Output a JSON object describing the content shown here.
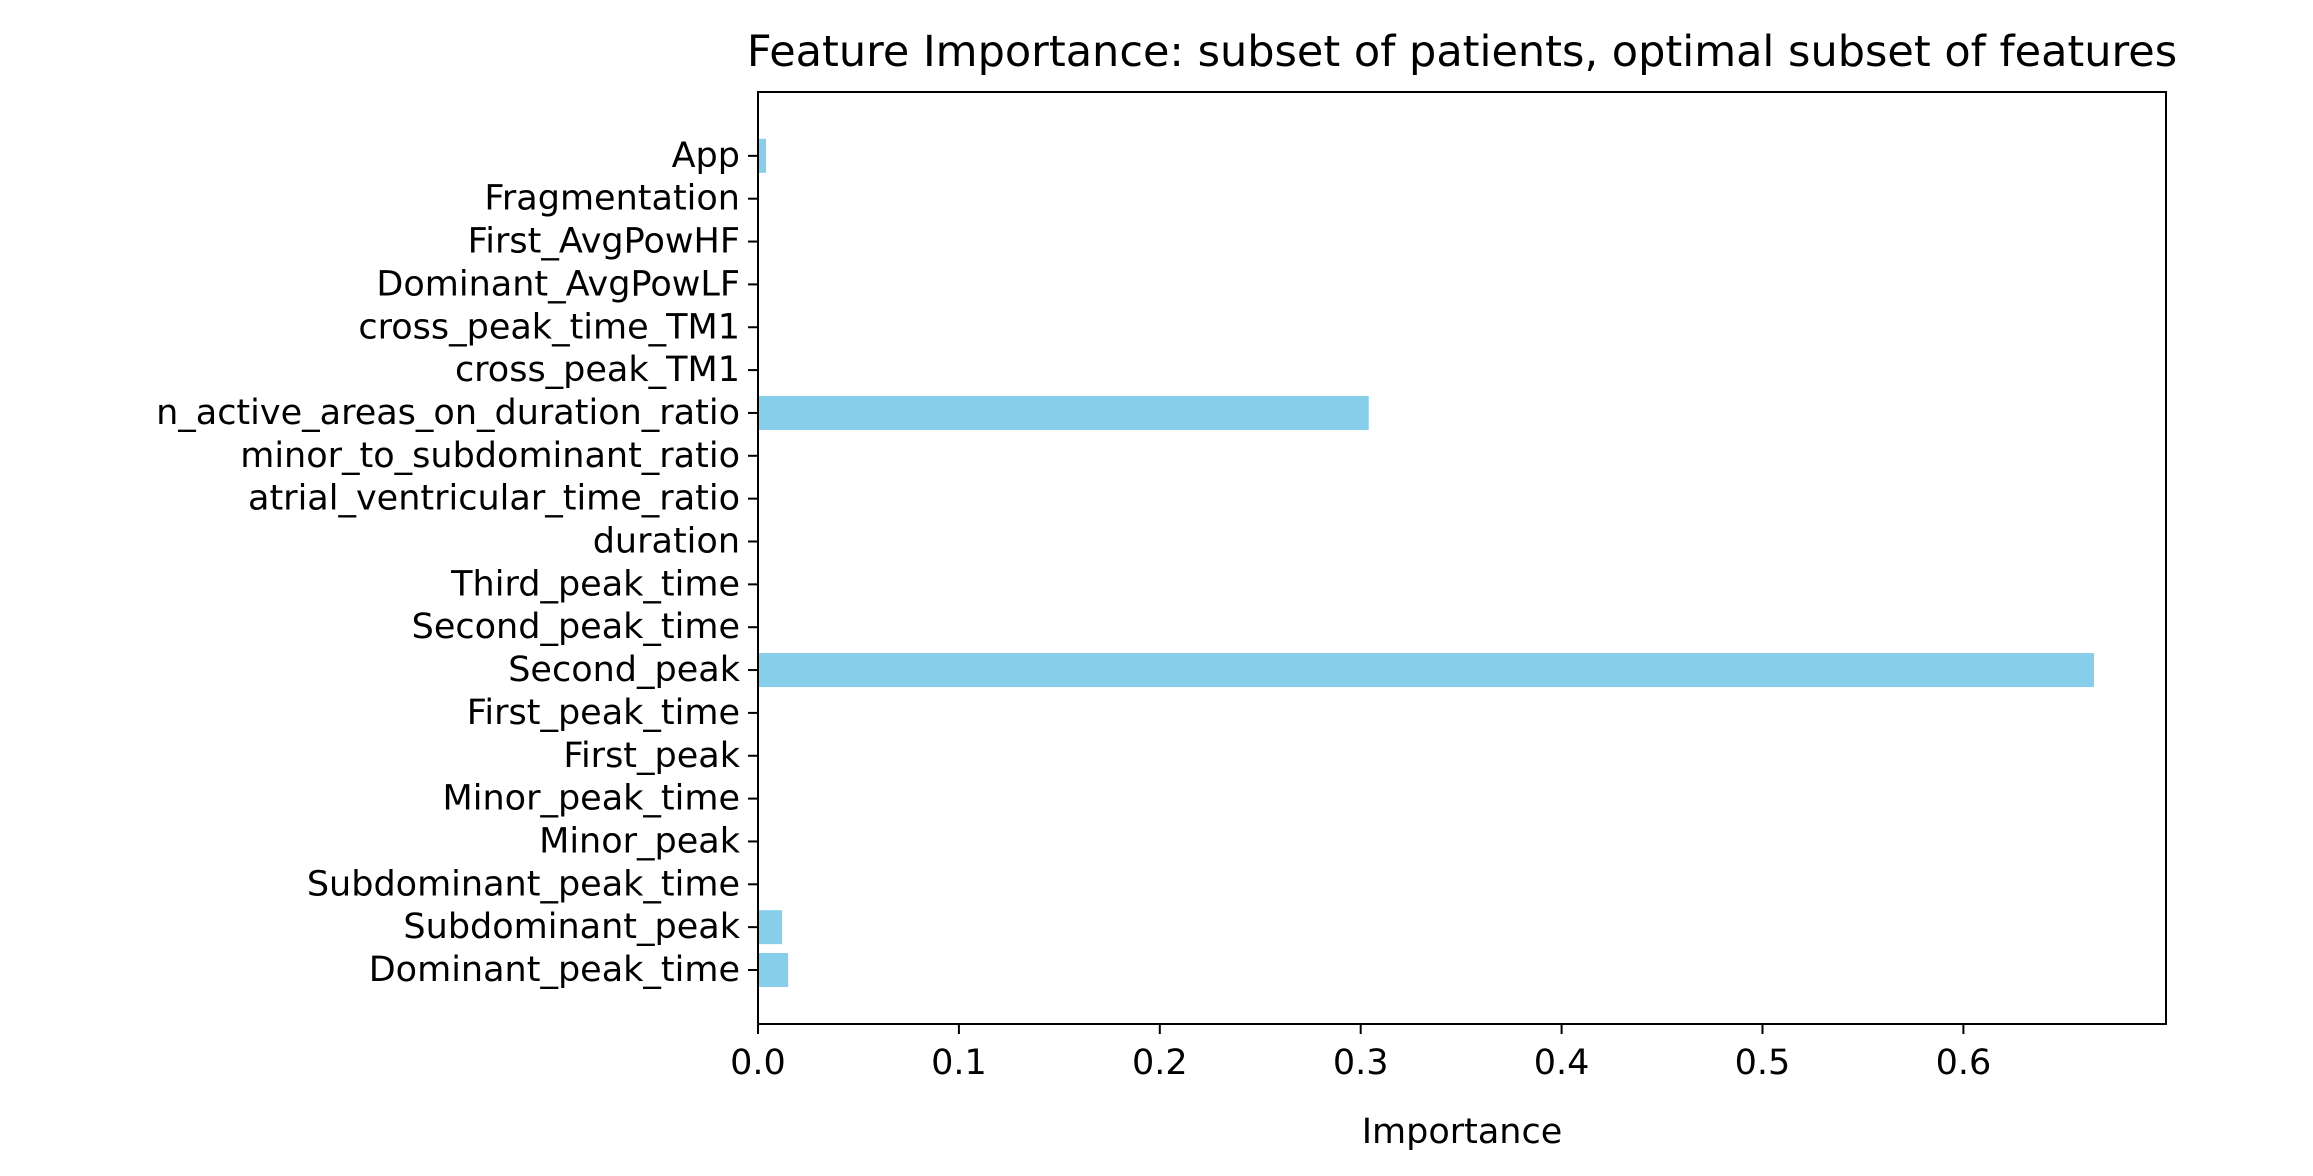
{
  "chart_data": {
    "type": "bar",
    "orientation": "horizontal",
    "title": "Feature Importance: subset of patients, optimal subset of features",
    "xlabel": "Importance",
    "ylabel": "",
    "xlim": [
      0,
      0.7
    ],
    "xticks": [
      "0.0",
      "0.1",
      "0.2",
      "0.3",
      "0.4",
      "0.5",
      "0.6"
    ],
    "grid": false,
    "bar_color": "#87ceeb",
    "categories": [
      "Dominant_peak_time",
      "Subdominant_peak",
      "Subdominant_peak_time",
      "Minor_peak",
      "Minor_peak_time",
      "First_peak",
      "First_peak_time",
      "Second_peak",
      "Second_peak_time",
      "Third_peak_time",
      "duration",
      "atrial_ventricular_time_ratio",
      "minor_to_subdominant_ratio",
      "n_active_areas_on_duration_ratio",
      "cross_peak_TM1",
      "cross_peak_time_TM1",
      "Dominant_AvgPowLF",
      "First_AvgPowHF",
      "Fragmentation",
      "App"
    ],
    "values": [
      0.015,
      0.012,
      0,
      0,
      0,
      0,
      0,
      0.665,
      0,
      0,
      0,
      0,
      0,
      0.304,
      0,
      0,
      0,
      0,
      0,
      0.004
    ]
  }
}
